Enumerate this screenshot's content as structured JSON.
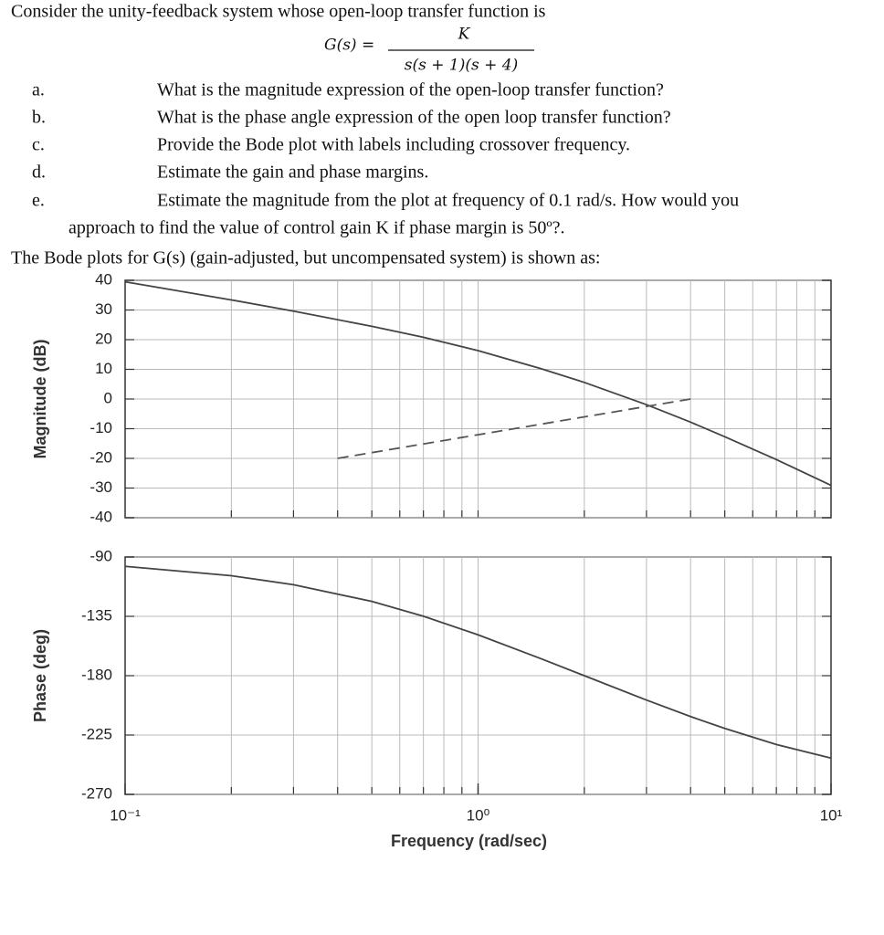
{
  "problem": {
    "intro": "Consider the unity-feedback system whose open-loop transfer function is",
    "equation": {
      "lhs": "G(s) =",
      "numerator": "K",
      "denominator": "s(s + 1)(s + 4)"
    },
    "items": [
      {
        "label": "a.",
        "text": "What is the magnitude expression of the open-loop transfer function?"
      },
      {
        "label": "b.",
        "text": "What is the phase angle expression of the open loop transfer function?"
      },
      {
        "label": "c.",
        "text": "Provide the Bode plot with labels including crossover frequency."
      },
      {
        "label": "d.",
        "text": "Estimate the gain and phase margins."
      },
      {
        "label": "e.",
        "text": "Estimate the magnitude from the plot at frequency of 0.1 rad/s.  How would you",
        "continuation": "approach to find the value of control gain K if phase margin is 50º?."
      }
    ]
  },
  "caption": "The Bode plots for G(s) (gain-adjusted, but uncompensated system) is shown as:",
  "chart_data": [
    {
      "type": "line",
      "ylabel": "Magnitude (dB)",
      "xscale": "log",
      "xlim": [
        0.1,
        10
      ],
      "xgrid": [
        0.2,
        0.3,
        0.4,
        0.5,
        0.6,
        0.7,
        0.8,
        0.9,
        1,
        2,
        3,
        4,
        5,
        6,
        7,
        8,
        9
      ],
      "ylim": [
        -40,
        40
      ],
      "yticks": [
        40,
        30,
        20,
        10,
        0,
        -10,
        -20,
        -30,
        -40
      ],
      "grid": true,
      "series": [
        {
          "x": [
            0.1,
            0.2,
            0.3,
            0.5,
            0.7,
            1,
            1.5,
            2,
            3,
            4,
            5,
            7,
            10
          ],
          "values": [
            39.5,
            33.4,
            29.6,
            24.5,
            20.8,
            16.3,
            10.3,
            5.6,
            -1.9,
            -7.8,
            -12.7,
            -20.4,
            -29.1
          ],
          "color": "#444",
          "linestyle": "solid"
        },
        {
          "x": [
            0.4,
            4
          ],
          "values": [
            -20,
            0
          ],
          "color": "#555",
          "linestyle": "dashed"
        }
      ]
    },
    {
      "type": "line",
      "ylabel": "Phase (deg)",
      "xlabel": "Frequency (rad/sec)",
      "xscale": "log",
      "xlim": [
        0.1,
        10
      ],
      "xticks": [
        {
          "value": 0.1,
          "label": "10⁻¹"
        },
        {
          "value": 1,
          "label": "10⁰"
        },
        {
          "value": 10,
          "label": "10¹"
        }
      ],
      "xgrid": [
        0.2,
        0.3,
        0.4,
        0.5,
        0.6,
        0.7,
        0.8,
        0.9,
        1,
        2,
        3,
        4,
        5,
        6,
        7,
        8,
        9
      ],
      "ylim": [
        -270,
        -90
      ],
      "yticks": [
        -90,
        -135,
        -180,
        -225,
        -270
      ],
      "grid": true,
      "series": [
        {
          "x": [
            0.1,
            0.2,
            0.3,
            0.5,
            0.7,
            1,
            1.5,
            2,
            3,
            4,
            5,
            7,
            10
          ],
          "values": [
            -97.1,
            -104.2,
            -111,
            -123.7,
            -134.9,
            -149,
            -166.9,
            -180,
            -198.5,
            -211,
            -220,
            -232.2,
            -242.5
          ],
          "color": "#444",
          "linestyle": "solid"
        }
      ]
    }
  ]
}
